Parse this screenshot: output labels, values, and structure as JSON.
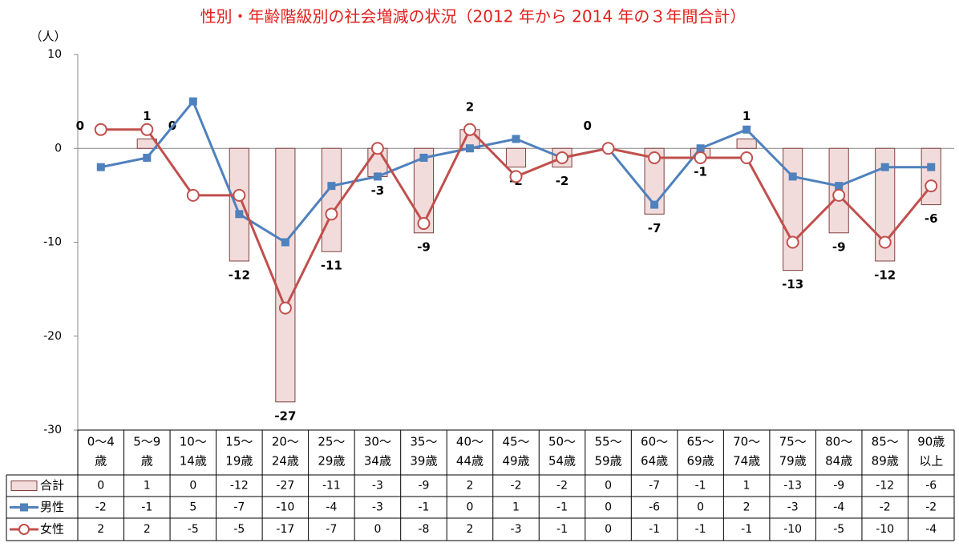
{
  "chart_data": {
    "type": "bar_line_table",
    "title": "性別・年齢階級別の社会増減の状況（2012 年から 2014 年の３年間合計）",
    "y_unit": "（人）",
    "categories": [
      [
        "0～4",
        "歳"
      ],
      [
        "5～9",
        "歳"
      ],
      [
        "10～",
        "14歳"
      ],
      [
        "15～",
        "19歳"
      ],
      [
        "20～",
        "24歳"
      ],
      [
        "25～",
        "29歳"
      ],
      [
        "30～",
        "34歳"
      ],
      [
        "35～",
        "39歳"
      ],
      [
        "40～",
        "44歳"
      ],
      [
        "45～",
        "49歳"
      ],
      [
        "50～",
        "54歳"
      ],
      [
        "55～",
        "59歳"
      ],
      [
        "60～",
        "64歳"
      ],
      [
        "65～",
        "69歳"
      ],
      [
        "70～",
        "74歳"
      ],
      [
        "75～",
        "79歳"
      ],
      [
        "80～",
        "84歳"
      ],
      [
        "85～",
        "89歳"
      ],
      [
        "90歳",
        "以上"
      ]
    ],
    "series": [
      {
        "name": "合計",
        "kind": "bar",
        "color": "#f2dcdb",
        "stroke": "#7f4040",
        "values": [
          0,
          1,
          0,
          -12,
          -27,
          -11,
          -3,
          -9,
          2,
          -2,
          -2,
          0,
          -7,
          -1,
          1,
          -13,
          -9,
          -12,
          -6
        ]
      },
      {
        "name": "男性",
        "kind": "line",
        "color": "#4f81bd",
        "values": [
          -2,
          -1,
          5,
          -7,
          -10,
          -4,
          -3,
          -1,
          0,
          1,
          -1,
          0,
          -6,
          0,
          2,
          -3,
          -4,
          -2,
          -2
        ]
      },
      {
        "name": "女性",
        "kind": "line",
        "color": "#c0504d",
        "values": [
          2,
          2,
          -5,
          -5,
          -17,
          -7,
          0,
          -8,
          2,
          -3,
          -1,
          0,
          -1,
          -1,
          -1,
          -10,
          -5,
          -10,
          -4
        ]
      }
    ],
    "ylim": [
      -30,
      10
    ],
    "yticks": [
      -30,
      -20,
      -10,
      0,
      10
    ],
    "grid": false
  }
}
